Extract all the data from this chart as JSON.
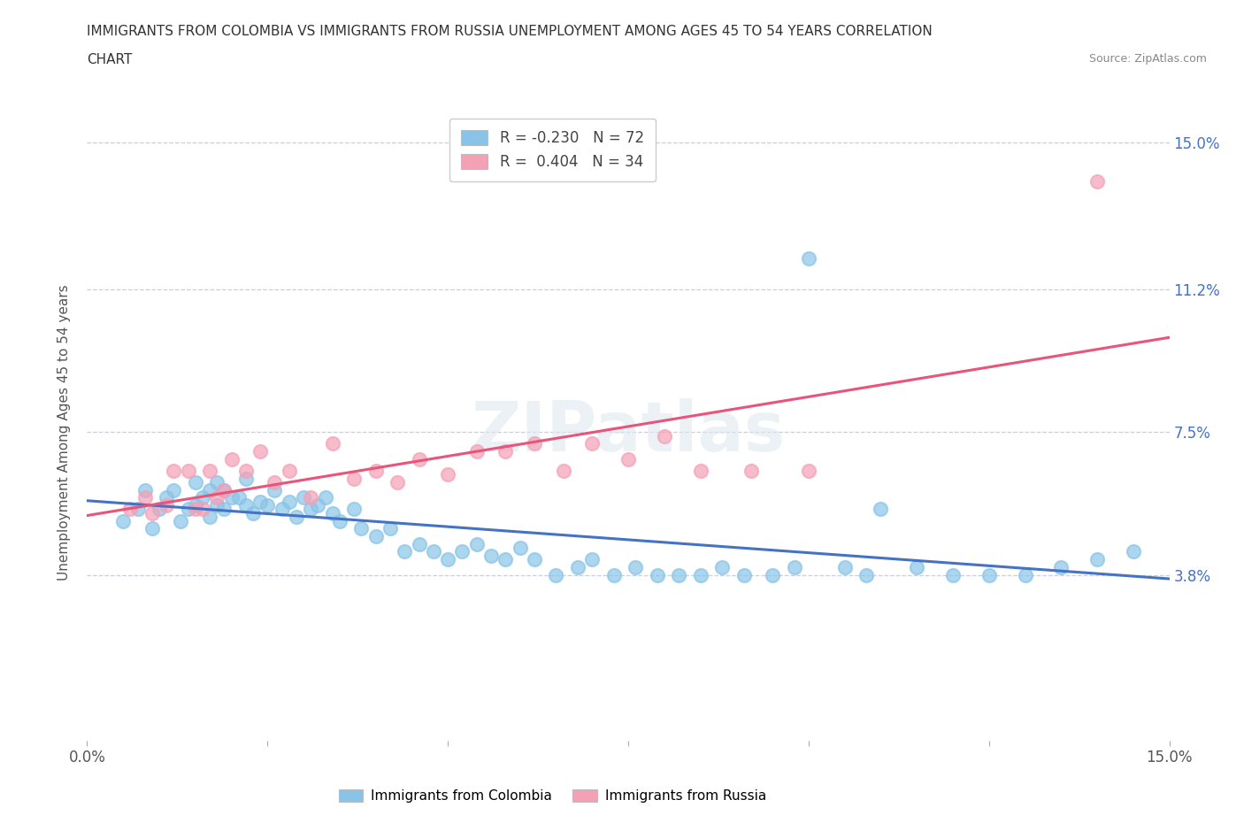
{
  "title_line1": "IMMIGRANTS FROM COLOMBIA VS IMMIGRANTS FROM RUSSIA UNEMPLOYMENT AMONG AGES 45 TO 54 YEARS CORRELATION",
  "title_line2": "CHART",
  "source": "Source: ZipAtlas.com",
  "ylabel": "Unemployment Among Ages 45 to 54 years",
  "xlim": [
    0.0,
    0.15
  ],
  "ylim": [
    -0.005,
    0.155
  ],
  "ytick_vals": [
    0.038,
    0.075,
    0.112,
    0.15
  ],
  "ytick_labels": [
    "3.8%",
    "7.5%",
    "11.2%",
    "15.0%"
  ],
  "colombia_color": "#89C4E8",
  "russia_color": "#F4A0B5",
  "colombia_line_color": "#4472C4",
  "russia_line_color": "#E8547A",
  "colombia_R": -0.23,
  "colombia_N": 72,
  "russia_R": 0.404,
  "russia_N": 34,
  "watermark": "ZIPatlas",
  "colombia_x": [
    0.005,
    0.007,
    0.008,
    0.009,
    0.01,
    0.011,
    0.012,
    0.013,
    0.014,
    0.015,
    0.015,
    0.016,
    0.017,
    0.017,
    0.018,
    0.018,
    0.019,
    0.019,
    0.02,
    0.021,
    0.022,
    0.022,
    0.023,
    0.024,
    0.025,
    0.026,
    0.027,
    0.028,
    0.029,
    0.03,
    0.031,
    0.032,
    0.033,
    0.034,
    0.035,
    0.037,
    0.038,
    0.04,
    0.042,
    0.044,
    0.046,
    0.048,
    0.05,
    0.052,
    0.054,
    0.056,
    0.058,
    0.06,
    0.062,
    0.065,
    0.068,
    0.07,
    0.073,
    0.076,
    0.079,
    0.082,
    0.085,
    0.088,
    0.091,
    0.095,
    0.098,
    0.1,
    0.105,
    0.108,
    0.11,
    0.115,
    0.12,
    0.125,
    0.13,
    0.135,
    0.14,
    0.145
  ],
  "colombia_y": [
    0.052,
    0.055,
    0.06,
    0.05,
    0.055,
    0.058,
    0.06,
    0.052,
    0.055,
    0.056,
    0.062,
    0.058,
    0.053,
    0.06,
    0.056,
    0.062,
    0.055,
    0.06,
    0.058,
    0.058,
    0.056,
    0.063,
    0.054,
    0.057,
    0.056,
    0.06,
    0.055,
    0.057,
    0.053,
    0.058,
    0.055,
    0.056,
    0.058,
    0.054,
    0.052,
    0.055,
    0.05,
    0.048,
    0.05,
    0.044,
    0.046,
    0.044,
    0.042,
    0.044,
    0.046,
    0.043,
    0.042,
    0.045,
    0.042,
    0.038,
    0.04,
    0.042,
    0.038,
    0.04,
    0.038,
    0.038,
    0.038,
    0.04,
    0.038,
    0.038,
    0.04,
    0.12,
    0.04,
    0.038,
    0.055,
    0.04,
    0.038,
    0.038,
    0.038,
    0.04,
    0.042,
    0.044
  ],
  "russia_x": [
    0.006,
    0.008,
    0.009,
    0.011,
    0.012,
    0.014,
    0.015,
    0.016,
    0.017,
    0.018,
    0.019,
    0.02,
    0.022,
    0.024,
    0.026,
    0.028,
    0.031,
    0.034,
    0.037,
    0.04,
    0.043,
    0.046,
    0.05,
    0.054,
    0.058,
    0.062,
    0.066,
    0.07,
    0.075,
    0.08,
    0.085,
    0.092,
    0.1,
    0.14
  ],
  "russia_y": [
    0.055,
    0.058,
    0.054,
    0.056,
    0.065,
    0.065,
    0.055,
    0.055,
    0.065,
    0.058,
    0.06,
    0.068,
    0.065,
    0.07,
    0.062,
    0.065,
    0.058,
    0.072,
    0.063,
    0.065,
    0.062,
    0.068,
    0.064,
    0.07,
    0.07,
    0.072,
    0.065,
    0.072,
    0.068,
    0.074,
    0.065,
    0.065,
    0.065,
    0.14
  ]
}
